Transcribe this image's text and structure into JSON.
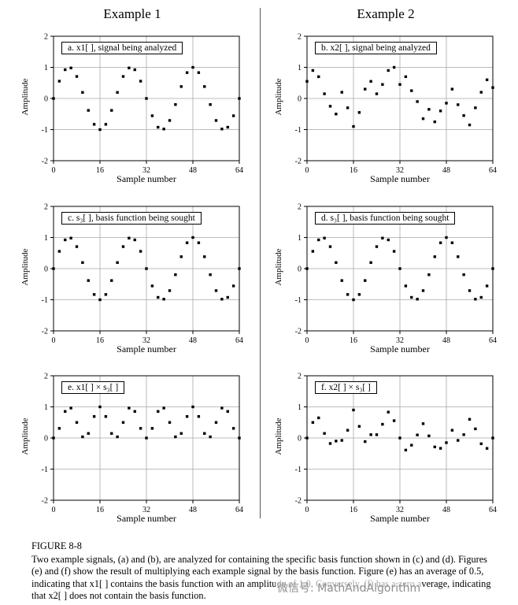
{
  "page": {
    "headers": {
      "example1": "Example 1",
      "example2": "Example 2"
    },
    "figure_label": "FIGURE 8-8",
    "caption": "Two example signals, (a) and (b), are analyzed for containing the specific basis function shown in (c) and (d).  Figures (e) and (f) show the result of multiplying each example signal by the basis function.  Figure (e) has an average of 0.5, indicating that x1[ ] contains the basis function with an amplitude of 1.0.  Conversely, (f) has a zero average, indicating that x2[ ] does not contain the basis function.",
    "watermark": "微信号: MathAndAlgorithm",
    "marker_color": "#000000"
  },
  "chart_data": [
    {
      "type": "scatter",
      "title": "a.  x1[ ], signal being analyzed",
      "xlabel": "Sample number",
      "ylabel": "Amplitude",
      "xlim": [
        0,
        64
      ],
      "ylim": [
        -2,
        2
      ],
      "xticks": [
        0,
        16,
        32,
        48,
        64
      ],
      "yticks": [
        -2,
        -1,
        0,
        1,
        2
      ],
      "grid": true,
      "marker": "square",
      "x": [
        0,
        2,
        4,
        6,
        8,
        10,
        12,
        14,
        16,
        18,
        20,
        22,
        24,
        26,
        28,
        30,
        32,
        34,
        36,
        38,
        40,
        42,
        44,
        46,
        48,
        50,
        52,
        54,
        56,
        58,
        60,
        62,
        64
      ],
      "y": [
        0,
        0.556,
        0.924,
        0.981,
        0.707,
        0.195,
        -0.383,
        -0.831,
        -1,
        -0.831,
        -0.383,
        0.195,
        0.707,
        0.981,
        0.924,
        0.556,
        0,
        -0.556,
        -0.924,
        -0.981,
        -0.707,
        -0.195,
        0.383,
        0.831,
        1,
        0.831,
        0.383,
        -0.195,
        -0.707,
        -0.981,
        -0.924,
        -0.556,
        0
      ]
    },
    {
      "type": "scatter",
      "title": "b.  x2[ ], signal being analyzed",
      "xlabel": "Sample number",
      "ylabel": "Amplitude",
      "xlim": [
        0,
        64
      ],
      "ylim": [
        -2,
        2
      ],
      "xticks": [
        0,
        16,
        32,
        48,
        64
      ],
      "yticks": [
        -2,
        -1,
        0,
        1,
        2
      ],
      "grid": true,
      "marker": "square",
      "x": [
        0,
        2,
        4,
        6,
        8,
        10,
        12,
        14,
        16,
        18,
        20,
        22,
        24,
        26,
        28,
        30,
        32,
        34,
        36,
        38,
        40,
        42,
        44,
        46,
        48,
        50,
        52,
        54,
        56,
        58,
        60,
        62,
        64
      ],
      "y": [
        0.55,
        0.9,
        0.7,
        0.15,
        -0.25,
        -0.5,
        0.2,
        -0.3,
        -0.9,
        -0.45,
        0.3,
        0.55,
        0.15,
        0.45,
        0.9,
        1,
        0.45,
        0.7,
        0.25,
        -0.1,
        -0.65,
        -0.35,
        -0.75,
        -0.4,
        -0.15,
        0.3,
        -0.2,
        -0.55,
        -0.85,
        -0.3,
        0.2,
        0.6,
        0.35
      ]
    },
    {
      "type": "scatter",
      "title": "c.  s₃[ ], basis function being sought",
      "xlabel": "Sample number",
      "ylabel": "Amplitude",
      "xlim": [
        0,
        64
      ],
      "ylim": [
        -2,
        2
      ],
      "xticks": [
        0,
        16,
        32,
        48,
        64
      ],
      "yticks": [
        -2,
        -1,
        0,
        1,
        2
      ],
      "grid": true,
      "marker": "square",
      "x": [
        0,
        2,
        4,
        6,
        8,
        10,
        12,
        14,
        16,
        18,
        20,
        22,
        24,
        26,
        28,
        30,
        32,
        34,
        36,
        38,
        40,
        42,
        44,
        46,
        48,
        50,
        52,
        54,
        56,
        58,
        60,
        62,
        64
      ],
      "y": [
        0,
        0.556,
        0.924,
        0.981,
        0.707,
        0.195,
        -0.383,
        -0.831,
        -1,
        -0.831,
        -0.383,
        0.195,
        0.707,
        0.981,
        0.924,
        0.556,
        0,
        -0.556,
        -0.924,
        -0.981,
        -0.707,
        -0.195,
        0.383,
        0.831,
        1,
        0.831,
        0.383,
        -0.195,
        -0.707,
        -0.981,
        -0.924,
        -0.556,
        0
      ]
    },
    {
      "type": "scatter",
      "title": "d.  s₃[ ], basis function being sought",
      "xlabel": "Sample number",
      "ylabel": "Amplitude",
      "xlim": [
        0,
        64
      ],
      "ylim": [
        -2,
        2
      ],
      "xticks": [
        0,
        16,
        32,
        48,
        64
      ],
      "yticks": [
        -2,
        -1,
        0,
        1,
        2
      ],
      "grid": true,
      "marker": "square",
      "x": [
        0,
        2,
        4,
        6,
        8,
        10,
        12,
        14,
        16,
        18,
        20,
        22,
        24,
        26,
        28,
        30,
        32,
        34,
        36,
        38,
        40,
        42,
        44,
        46,
        48,
        50,
        52,
        54,
        56,
        58,
        60,
        62,
        64
      ],
      "y": [
        0,
        0.556,
        0.924,
        0.981,
        0.707,
        0.195,
        -0.383,
        -0.831,
        -1,
        -0.831,
        -0.383,
        0.195,
        0.707,
        0.981,
        0.924,
        0.556,
        0,
        -0.556,
        -0.924,
        -0.981,
        -0.707,
        -0.195,
        0.383,
        0.831,
        1,
        0.831,
        0.383,
        -0.195,
        -0.707,
        -0.981,
        -0.924,
        -0.556,
        0
      ]
    },
    {
      "type": "scatter",
      "title": "e.  x1[ ] × s₃[ ]",
      "xlabel": "Sample number",
      "ylabel": "Amplitude",
      "xlim": [
        0,
        64
      ],
      "ylim": [
        -2,
        2
      ],
      "xticks": [
        0,
        16,
        32,
        48,
        64
      ],
      "yticks": [
        -2,
        -1,
        0,
        1,
        2
      ],
      "grid": true,
      "marker": "square",
      "x": [
        0,
        2,
        4,
        6,
        8,
        10,
        12,
        14,
        16,
        18,
        20,
        22,
        24,
        26,
        28,
        30,
        32,
        34,
        36,
        38,
        40,
        42,
        44,
        46,
        48,
        50,
        52,
        54,
        56,
        58,
        60,
        62,
        64
      ],
      "y": [
        0,
        0.309,
        0.854,
        0.962,
        0.5,
        0.038,
        0.146,
        0.691,
        1,
        0.691,
        0.146,
        0.038,
        0.5,
        0.962,
        0.854,
        0.309,
        0,
        0.309,
        0.854,
        0.962,
        0.5,
        0.038,
        0.146,
        0.691,
        1,
        0.691,
        0.146,
        0.038,
        0.5,
        0.962,
        0.854,
        0.309,
        0
      ]
    },
    {
      "type": "scatter",
      "title": "f.  x2[ ] × s₃[ ]",
      "xlabel": "Sample number",
      "ylabel": "Amplitude",
      "xlim": [
        0,
        64
      ],
      "ylim": [
        -2,
        2
      ],
      "xticks": [
        0,
        16,
        32,
        48,
        64
      ],
      "yticks": [
        -2,
        -1,
        0,
        1,
        2
      ],
      "grid": true,
      "marker": "square",
      "x": [
        0,
        2,
        4,
        6,
        8,
        10,
        12,
        14,
        16,
        18,
        20,
        22,
        24,
        26,
        28,
        30,
        32,
        34,
        36,
        38,
        40,
        42,
        44,
        46,
        48,
        50,
        52,
        54,
        56,
        58,
        60,
        62,
        64
      ],
      "y": [
        0,
        0.5,
        0.647,
        0.147,
        -0.177,
        -0.098,
        -0.077,
        0.249,
        0.9,
        0.374,
        -0.115,
        0.107,
        0.106,
        0.441,
        0.832,
        0.556,
        0,
        -0.389,
        -0.231,
        0.098,
        0.46,
        0.068,
        -0.287,
        -0.332,
        -0.15,
        0.249,
        -0.077,
        0.107,
        0.601,
        0.294,
        -0.185,
        -0.334,
        0
      ]
    }
  ]
}
